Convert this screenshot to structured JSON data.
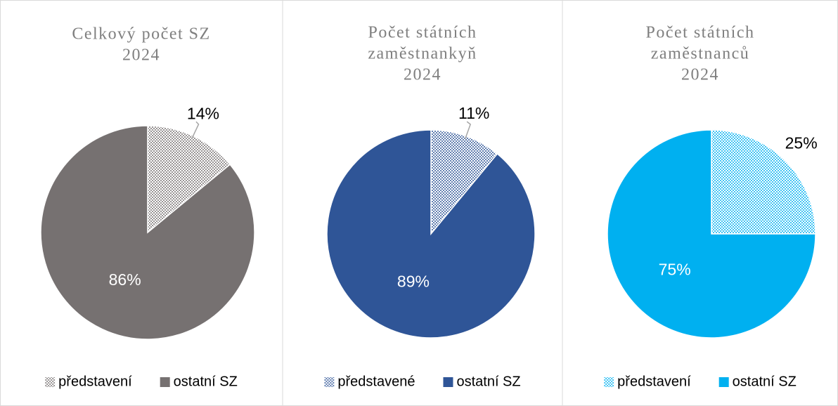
{
  "chart_data": [
    {
      "type": "pie",
      "title": [
        "Celkový počet SZ",
        "2024"
      ],
      "categories": [
        "představení",
        "ostatní SZ"
      ],
      "values": [
        14,
        86
      ],
      "value_labels": [
        "14%",
        "86%"
      ],
      "colors": [
        "#767171",
        "#767171"
      ],
      "patterned": [
        true,
        false
      ]
    },
    {
      "type": "pie",
      "title": [
        "Počet státních",
        "zaměstnankyň",
        "2024"
      ],
      "categories": [
        "představené",
        "ostatní SZ"
      ],
      "values": [
        11,
        89
      ],
      "value_labels": [
        "11%",
        "89%"
      ],
      "colors": [
        "#2f5597",
        "#2f5597"
      ],
      "patterned": [
        true,
        false
      ]
    },
    {
      "type": "pie",
      "title": [
        "Počet státních",
        "zaměstnanců",
        "2024"
      ],
      "categories": [
        "představení",
        "ostatní SZ"
      ],
      "values": [
        25,
        75
      ],
      "value_labels": [
        "25%",
        "75%"
      ],
      "colors": [
        "#00b0f0",
        "#00b0f0"
      ],
      "patterned": [
        true,
        false
      ]
    }
  ]
}
